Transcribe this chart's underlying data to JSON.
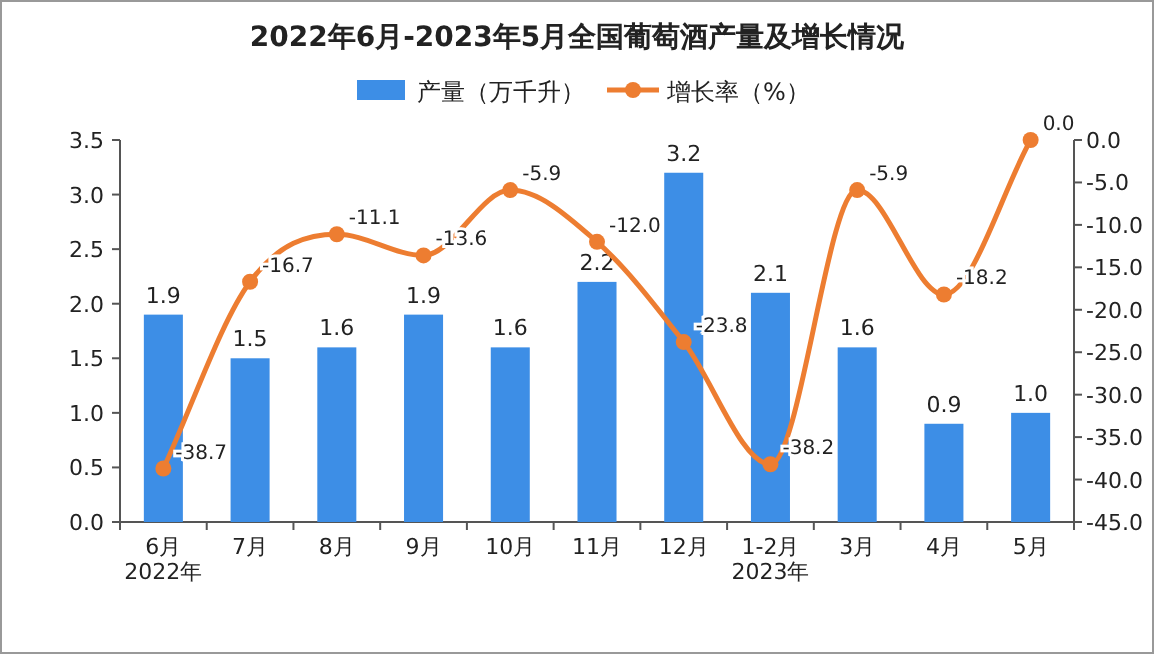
{
  "chart_data": {
    "type": "bar",
    "title": "2022年6月-2023年5月全国葡萄酒产量及增长情况",
    "categories": [
      "6月\n2022年",
      "7月",
      "8月",
      "9月",
      "10月",
      "11月",
      "12月",
      "1-2月\n2023年",
      "3月",
      "4月",
      "5月"
    ],
    "series": [
      {
        "name": "产量（万千升）",
        "color": "#3d8ee6",
        "values": [
          1.9,
          1.5,
          1.6,
          1.9,
          1.6,
          2.2,
          3.2,
          2.1,
          1.6,
          0.9,
          1.0
        ],
        "value_labels": [
          "1.9",
          "1.5",
          "1.6",
          "1.9",
          "1.6",
          "2.2",
          "3.2",
          "2.1",
          "1.6",
          "0.9",
          "1.0"
        ]
      },
      {
        "name": "增长率（%）",
        "type": "line",
        "axis": "y2",
        "color": "#ed7d31",
        "marker": "circle",
        "values": [
          -38.7,
          -16.7,
          -11.1,
          -13.6,
          -5.9,
          -12.0,
          -23.8,
          -38.2,
          -5.9,
          -18.2,
          0.0
        ],
        "value_labels": [
          "-38.7",
          "-16.7",
          "-11.1",
          "-13.6",
          "-5.9",
          "-12.0",
          "-23.8",
          "-38.2",
          "-5.9",
          "-18.2",
          "0.0"
        ]
      }
    ],
    "ylim": [
      0,
      3.5
    ],
    "yticks": [
      {
        "value": 0,
        "label": "0.0"
      },
      {
        "value": 0.5,
        "label": "0.5"
      },
      {
        "value": 1,
        "label": "1.0"
      },
      {
        "value": 1.5,
        "label": "1.5"
      },
      {
        "value": 2,
        "label": "2.0"
      },
      {
        "value": 2.5,
        "label": "2.5"
      },
      {
        "value": 3,
        "label": "3.0"
      },
      {
        "value": 3.5,
        "label": "3.5"
      }
    ],
    "y2lim": [
      -45,
      0
    ],
    "y2ticks": [
      {
        "value": 0,
        "label": "0.0"
      },
      {
        "value": -5,
        "label": "-5.0"
      },
      {
        "value": -10,
        "label": "-10.0"
      },
      {
        "value": -15,
        "label": "-15.0"
      },
      {
        "value": -20,
        "label": "-20.0"
      },
      {
        "value": -25,
        "label": "-25.0"
      },
      {
        "value": -30,
        "label": "-30.0"
      },
      {
        "value": -35,
        "label": "-35.0"
      },
      {
        "value": -40,
        "label": "-40.0"
      },
      {
        "value": -45,
        "label": "-45.0"
      }
    ],
    "legend": "top",
    "grid": false
  }
}
